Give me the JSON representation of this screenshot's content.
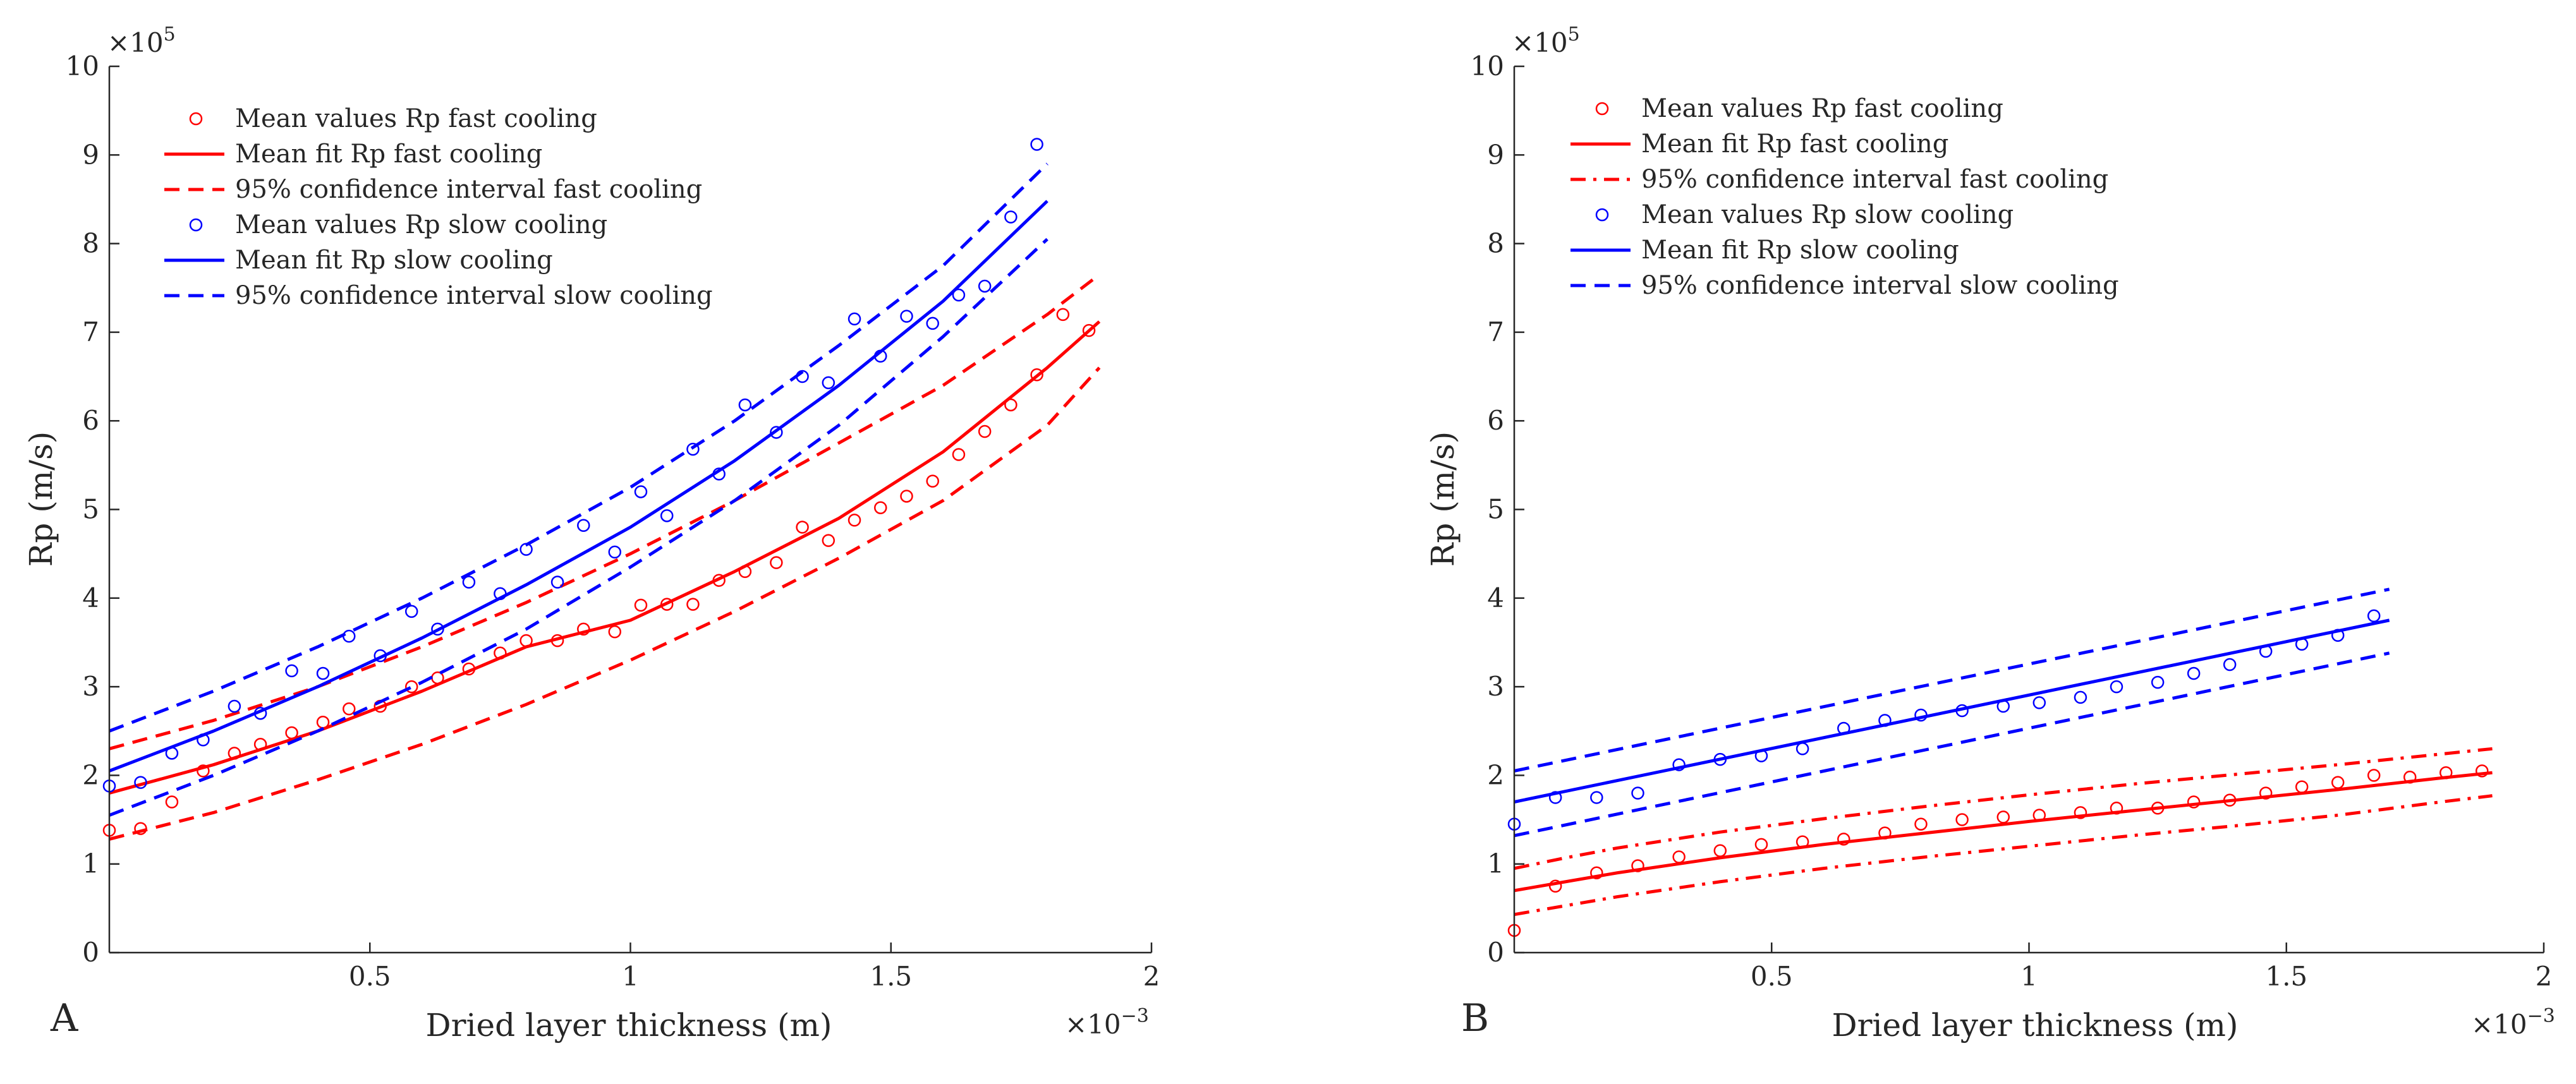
{
  "charts": [
    {
      "type": "scatter+line",
      "panel_label": "A",
      "xlabel": "Dried layer thickness (m)",
      "ylabel": "Rp (m/s)",
      "x_multiplier": "×10",
      "x_exponent": "−3",
      "y_multiplier": "×10",
      "y_exponent": "5",
      "xlim": [
        0,
        2
      ],
      "ylim": [
        0,
        10
      ],
      "xticks": [
        0.5,
        1,
        1.5,
        2
      ],
      "yticks": [
        0,
        1,
        2,
        3,
        4,
        5,
        6,
        7,
        8,
        9,
        10
      ],
      "xtick_labels": [
        "0.5",
        "1",
        "1.5",
        "2"
      ],
      "ytick_labels": [
        "0",
        "1",
        "2",
        "3",
        "4",
        "5",
        "6",
        "7",
        "8",
        "9",
        "10"
      ],
      "legend_position": "top-left",
      "legend": [
        {
          "label": "Mean values Rp fast cooling",
          "color": "#ff0000",
          "style": "marker"
        },
        {
          "label": "Mean fit Rp fast cooling",
          "color": "#ff0000",
          "style": "solid"
        },
        {
          "label": "95% confidence interval fast cooling",
          "color": "#ff0000",
          "style": "dashed"
        },
        {
          "label": "Mean values Rp slow cooling",
          "color": "#0000ff",
          "style": "marker"
        },
        {
          "label": "Mean fit Rp slow cooling",
          "color": "#0000ff",
          "style": "solid"
        },
        {
          "label": "95% confidence interval slow cooling",
          "color": "#0000ff",
          "style": "dashed"
        }
      ],
      "series": [
        {
          "name": "Mean values Rp fast cooling",
          "kind": "markers",
          "color": "#ff0000",
          "x": [
            0.0,
            0.06,
            0.12,
            0.18,
            0.24,
            0.29,
            0.35,
            0.41,
            0.46,
            0.52,
            0.58,
            0.63,
            0.69,
            0.75,
            0.8,
            0.86,
            0.91,
            0.97,
            1.02,
            1.07,
            1.12,
            1.17,
            1.22,
            1.28,
            1.33,
            1.38,
            1.43,
            1.48,
            1.53,
            1.58,
            1.63,
            1.68,
            1.73,
            1.78,
            1.83,
            1.88
          ],
          "y": [
            1.38,
            1.4,
            1.7,
            2.05,
            2.25,
            2.35,
            2.48,
            2.6,
            2.75,
            2.78,
            3.0,
            3.1,
            3.2,
            3.38,
            3.52,
            3.52,
            3.65,
            3.62,
            3.92,
            3.93,
            3.93,
            4.2,
            4.3,
            4.4,
            4.8,
            4.65,
            4.88,
            5.02,
            5.15,
            5.32,
            5.62,
            5.88,
            6.18,
            6.52,
            7.2,
            7.02
          ]
        },
        {
          "name": "Mean fit Rp fast cooling",
          "kind": "line",
          "color": "#ff0000",
          "dash": "solid",
          "x": [
            0.0,
            0.2,
            0.4,
            0.6,
            0.8,
            1.0,
            1.2,
            1.4,
            1.6,
            1.8,
            1.9
          ],
          "y": [
            1.8,
            2.12,
            2.5,
            2.95,
            3.45,
            3.75,
            4.3,
            4.9,
            5.65,
            6.6,
            7.12
          ]
        },
        {
          "name": "95% confidence interval fast cooling (upper)",
          "kind": "line",
          "color": "#ff0000",
          "dash": "dashed",
          "x": [
            0.0,
            0.2,
            0.4,
            0.6,
            0.8,
            1.0,
            1.2,
            1.4,
            1.6,
            1.8,
            1.9
          ],
          "y": [
            2.3,
            2.62,
            3.0,
            3.45,
            3.95,
            4.5,
            5.1,
            5.75,
            6.4,
            7.2,
            7.65
          ]
        },
        {
          "name": "95% confidence interval fast cooling (lower)",
          "kind": "line",
          "color": "#ff0000",
          "dash": "dashed",
          "x": [
            0.0,
            0.2,
            0.4,
            0.6,
            0.8,
            1.0,
            1.2,
            1.4,
            1.6,
            1.8,
            1.9
          ],
          "y": [
            1.28,
            1.58,
            1.95,
            2.35,
            2.8,
            3.3,
            3.85,
            4.45,
            5.1,
            5.95,
            6.6
          ]
        },
        {
          "name": "Mean values Rp slow cooling",
          "kind": "markers",
          "color": "#0000ff",
          "x": [
            0.0,
            0.06,
            0.12,
            0.18,
            0.24,
            0.29,
            0.35,
            0.41,
            0.46,
            0.52,
            0.58,
            0.63,
            0.69,
            0.75,
            0.8,
            0.86,
            0.91,
            0.97,
            1.02,
            1.07,
            1.12,
            1.17,
            1.22,
            1.28,
            1.33,
            1.38,
            1.43,
            1.48,
            1.53,
            1.58,
            1.63,
            1.68,
            1.73,
            1.78
          ],
          "y": [
            1.88,
            1.92,
            2.25,
            2.4,
            2.78,
            2.7,
            3.18,
            3.15,
            3.57,
            3.35,
            3.85,
            3.65,
            4.18,
            4.05,
            4.55,
            4.18,
            4.82,
            4.52,
            5.2,
            4.93,
            5.68,
            5.4,
            6.18,
            5.87,
            6.5,
            6.43,
            7.15,
            6.73,
            7.18,
            7.1,
            7.42,
            7.52,
            8.3,
            9.12
          ]
        },
        {
          "name": "Mean fit Rp slow cooling",
          "kind": "line",
          "color": "#0000ff",
          "dash": "solid",
          "x": [
            0.0,
            0.2,
            0.4,
            0.6,
            0.8,
            1.0,
            1.2,
            1.4,
            1.6,
            1.8
          ],
          "y": [
            2.05,
            2.5,
            3.0,
            3.55,
            4.15,
            4.8,
            5.55,
            6.4,
            7.35,
            8.48
          ]
        },
        {
          "name": "95% confidence interval slow cooling (upper)",
          "kind": "line",
          "color": "#0000ff",
          "dash": "dashed",
          "x": [
            0.0,
            0.2,
            0.4,
            0.6,
            0.8,
            1.0,
            1.2,
            1.4,
            1.6,
            1.8
          ],
          "y": [
            2.5,
            2.95,
            3.45,
            4.0,
            4.6,
            5.25,
            6.0,
            6.85,
            7.75,
            8.9
          ]
        },
        {
          "name": "95% confidence interval slow cooling (lower)",
          "kind": "line",
          "color": "#0000ff",
          "dash": "dashed",
          "x": [
            0.0,
            0.2,
            0.4,
            0.6,
            0.8,
            1.0,
            1.2,
            1.4,
            1.6,
            1.8
          ],
          "y": [
            1.55,
            2.0,
            2.5,
            3.05,
            3.65,
            4.35,
            5.1,
            5.95,
            6.95,
            8.05
          ]
        }
      ]
    },
    {
      "type": "scatter+line",
      "panel_label": "B",
      "xlabel": "Dried layer thickness (m)",
      "ylabel": "Rp (m/s)",
      "x_multiplier": "×10",
      "x_exponent": "−3",
      "y_multiplier": "×10",
      "y_exponent": "5",
      "xlim": [
        0,
        2
      ],
      "ylim": [
        0,
        10
      ],
      "xticks": [
        0.5,
        1,
        1.5,
        2
      ],
      "yticks": [
        0,
        1,
        2,
        3,
        4,
        5,
        6,
        7,
        8,
        9,
        10
      ],
      "xtick_labels": [
        "0.5",
        "1",
        "1.5",
        "2"
      ],
      "ytick_labels": [
        "0",
        "1",
        "2",
        "3",
        "4",
        "5",
        "6",
        "7",
        "8",
        "9",
        "10"
      ],
      "legend_position": "top-left",
      "legend": [
        {
          "label": "Mean values Rp fast cooling",
          "color": "#ff0000",
          "style": "marker"
        },
        {
          "label": "Mean fit Rp fast cooling",
          "color": "#ff0000",
          "style": "solid"
        },
        {
          "label": "95% confidence interval fast cooling",
          "color": "#ff0000",
          "style": "dashdot"
        },
        {
          "label": "Mean values Rp slow cooling",
          "color": "#0000ff",
          "style": "marker"
        },
        {
          "label": "Mean fit Rp slow cooling",
          "color": "#0000ff",
          "style": "solid"
        },
        {
          "label": "95% confidence interval slow cooling",
          "color": "#0000ff",
          "style": "dashed"
        }
      ],
      "series": [
        {
          "name": "Mean values Rp fast cooling",
          "kind": "markers",
          "color": "#ff0000",
          "x": [
            0.0,
            0.08,
            0.16,
            0.24,
            0.32,
            0.4,
            0.48,
            0.56,
            0.64,
            0.72,
            0.79,
            0.87,
            0.95,
            1.02,
            1.1,
            1.17,
            1.25,
            1.32,
            1.39,
            1.46,
            1.53,
            1.6,
            1.67,
            1.74,
            1.81,
            1.88
          ],
          "y": [
            0.25,
            0.75,
            0.9,
            0.98,
            1.08,
            1.15,
            1.22,
            1.25,
            1.28,
            1.35,
            1.45,
            1.5,
            1.53,
            1.55,
            1.58,
            1.63,
            1.63,
            1.7,
            1.72,
            1.8,
            1.87,
            1.92,
            2.0,
            1.98,
            2.03,
            2.05
          ]
        },
        {
          "name": "Mean fit Rp fast cooling",
          "kind": "line",
          "color": "#ff0000",
          "dash": "solid",
          "x": [
            0.0,
            0.1,
            0.2,
            0.4,
            0.6,
            0.8,
            1.0,
            1.2,
            1.4,
            1.6,
            1.8,
            1.9
          ],
          "y": [
            0.7,
            0.8,
            0.9,
            1.07,
            1.22,
            1.35,
            1.48,
            1.6,
            1.72,
            1.84,
            1.97,
            2.03
          ]
        },
        {
          "name": "95% confidence interval fast cooling (upper)",
          "kind": "line",
          "color": "#ff0000",
          "dash": "dashdot",
          "x": [
            0.0,
            0.1,
            0.2,
            0.4,
            0.6,
            0.8,
            1.0,
            1.2,
            1.4,
            1.6,
            1.8,
            1.9
          ],
          "y": [
            0.95,
            1.07,
            1.18,
            1.36,
            1.51,
            1.65,
            1.78,
            1.9,
            2.01,
            2.12,
            2.24,
            2.3
          ]
        },
        {
          "name": "95% confidence interval fast cooling (lower)",
          "kind": "line",
          "color": "#ff0000",
          "dash": "dashdot",
          "x": [
            0.0,
            0.1,
            0.2,
            0.4,
            0.6,
            0.8,
            1.0,
            1.2,
            1.4,
            1.6,
            1.8,
            1.9
          ],
          "y": [
            0.43,
            0.53,
            0.63,
            0.8,
            0.95,
            1.08,
            1.2,
            1.32,
            1.43,
            1.55,
            1.7,
            1.77
          ]
        },
        {
          "name": "Mean values Rp slow cooling",
          "kind": "markers",
          "color": "#0000ff",
          "x": [
            0.0,
            0.08,
            0.16,
            0.24,
            0.32,
            0.4,
            0.48,
            0.56,
            0.64,
            0.72,
            0.79,
            0.87,
            0.95,
            1.02,
            1.1,
            1.17,
            1.25,
            1.32,
            1.39,
            1.46,
            1.53,
            1.6,
            1.67
          ],
          "y": [
            1.45,
            1.75,
            1.75,
            1.8,
            2.12,
            2.18,
            2.22,
            2.3,
            2.53,
            2.62,
            2.68,
            2.73,
            2.78,
            2.82,
            2.88,
            3.0,
            3.05,
            3.15,
            3.25,
            3.4,
            3.48,
            3.58,
            3.8
          ]
        },
        {
          "name": "Mean fit Rp slow cooling",
          "kind": "line",
          "color": "#0000ff",
          "dash": "solid",
          "x": [
            0.0,
            1.7
          ],
          "y": [
            1.7,
            3.75
          ]
        },
        {
          "name": "95% confidence interval slow cooling (upper)",
          "kind": "line",
          "color": "#0000ff",
          "dash": "dashed",
          "x": [
            0.0,
            1.7
          ],
          "y": [
            2.05,
            4.1
          ]
        },
        {
          "name": "95% confidence interval slow cooling (lower)",
          "kind": "line",
          "color": "#0000ff",
          "dash": "dashed",
          "x": [
            0.0,
            1.7
          ],
          "y": [
            1.32,
            3.38
          ]
        }
      ]
    }
  ]
}
